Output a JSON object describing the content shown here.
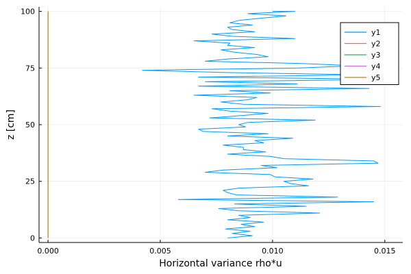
{
  "chart_data": {
    "type": "line",
    "title": "",
    "xlabel": "Horizontal variance rho*u",
    "ylabel": "z [cm]",
    "xlim": [
      -0.0004,
      0.0158
    ],
    "ylim": [
      -2,
      102
    ],
    "xticks": [
      0,
      0.005,
      0.01,
      0.015
    ],
    "xtick_labels": [
      "0.000",
      "0.005",
      "0.010",
      "0.015"
    ],
    "yticks": [
      0,
      25,
      50,
      75,
      100
    ],
    "ytick_labels": [
      "0",
      "25",
      "50",
      "75",
      "100"
    ],
    "grid": true,
    "legend_position": "top-right",
    "series": [
      {
        "name": "y1",
        "color": "#009AFA",
        "x": [
          0.008,
          0.0091,
          0.0082,
          0.009,
          0.0079,
          0.0092,
          0.0086,
          0.0096,
          0.008,
          0.009,
          0.0085,
          0.0121,
          0.0085,
          0.0076,
          0.0115,
          0.0083,
          0.0145,
          0.0058,
          0.0129,
          0.0084,
          0.008,
          0.0078,
          0.0085,
          0.0116,
          0.0108,
          0.0105,
          0.0118,
          0.0101,
          0.0099,
          0.007,
          0.0078,
          0.0102,
          0.0095,
          0.0147,
          0.0145,
          0.0105,
          0.0099,
          0.008,
          0.0097,
          0.0087,
          0.0087,
          0.0078,
          0.0096,
          0.0092,
          0.0109,
          0.008,
          0.0098,
          0.0069,
          0.0067,
          0.0088,
          0.0085,
          0.0089,
          0.0119,
          0.0072,
          0.0086,
          0.0098,
          0.0081,
          0.0073,
          0.0148,
          0.0087,
          0.0077,
          0.0089,
          0.0093,
          0.0065,
          0.0099,
          0.0081,
          0.0143,
          0.0067,
          0.0111,
          0.007,
          0.0154,
          0.0067,
          0.014,
          0.008,
          0.0042,
          0.0112,
          0.0137,
          0.0113,
          0.007,
          0.008,
          0.0098,
          0.0093,
          0.0083,
          0.0077,
          0.0092,
          0.008,
          0.0081,
          0.0065,
          0.011,
          0.0082,
          0.0073,
          0.0092,
          0.0082,
          0.008,
          0.0091,
          0.0081,
          0.0085,
          0.0095,
          0.0106,
          0.0089,
          0.011,
          0.01
        ],
        "y": [
          0,
          1,
          2,
          3,
          4,
          5,
          6,
          7,
          8,
          9,
          10,
          11,
          12,
          13,
          14,
          15,
          16,
          17,
          18,
          19,
          20,
          21,
          22,
          23,
          24,
          25,
          26,
          27,
          28,
          29,
          30,
          31,
          32,
          33,
          34,
          35,
          36,
          37,
          38,
          39,
          40,
          41,
          42,
          43,
          44,
          45,
          46,
          47,
          48,
          49,
          50,
          51,
          52,
          53,
          54,
          55,
          56,
          57,
          58,
          59,
          60,
          61,
          62,
          63,
          64,
          65,
          66,
          67,
          68,
          69,
          70,
          71,
          72,
          73,
          74,
          75,
          76,
          77,
          78,
          79,
          80,
          81,
          82,
          83,
          84,
          85,
          86,
          87,
          88,
          89,
          90,
          91,
          92,
          93,
          94,
          95,
          96,
          97,
          98,
          99,
          100,
          100
        ]
      },
      {
        "name": "y2",
        "color": "#E26F46",
        "x": [
          0,
          0
        ],
        "y": [
          0,
          100
        ]
      },
      {
        "name": "y3",
        "color": "#3DA44D",
        "x": [
          0,
          0
        ],
        "y": [
          0,
          100
        ]
      },
      {
        "name": "y4",
        "color": "#C271D2",
        "x": [
          0,
          0
        ],
        "y": [
          0,
          100
        ]
      },
      {
        "name": "y5",
        "color": "#AC8E18",
        "x": [
          0,
          0
        ],
        "y": [
          0,
          100
        ]
      }
    ]
  }
}
